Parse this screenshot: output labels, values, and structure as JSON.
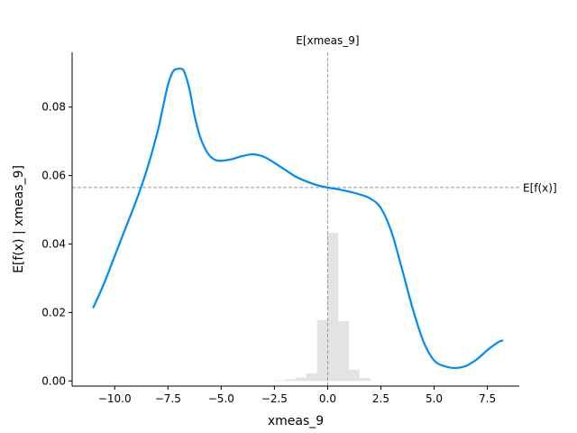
{
  "chart_data": {
    "type": "line",
    "xlabel": "xmeas_9",
    "ylabel": "E[f(x) | xmeas_9]",
    "xlim": [
      -12.0,
      9.0
    ],
    "ylim": [
      -0.0015,
      0.096
    ],
    "x_ticks": [
      -10.0,
      -7.5,
      -5.0,
      -2.5,
      0.0,
      2.5,
      5.0,
      7.5
    ],
    "x_tick_labels": [
      "−10.0",
      "−7.5",
      "−5.0",
      "−2.5",
      "0.0",
      "2.5",
      "5.0",
      "7.5"
    ],
    "y_ticks": [
      0.0,
      0.02,
      0.04,
      0.06,
      0.08
    ],
    "y_tick_labels": [
      "0.00",
      "0.02",
      "0.04",
      "0.06",
      "0.08"
    ],
    "grid": false,
    "line_color": "#008bfb",
    "ref_color": "#999999",
    "hist_color": "#cccccc",
    "series": [
      {
        "x": [
          -11.0,
          -10.5,
          -10.0,
          -9.5,
          -9.0,
          -8.5,
          -8.0,
          -7.75,
          -7.5,
          -7.25,
          -7.0,
          -6.9,
          -6.75,
          -6.5,
          -6.25,
          -6.0,
          -5.75,
          -5.5,
          -5.25,
          -5.0,
          -4.5,
          -4.0,
          -3.5,
          -3.0,
          -2.5,
          -2.0,
          -1.5,
          -1.0,
          -0.5,
          0.0,
          0.5,
          1.0,
          1.5,
          2.0,
          2.5,
          3.0,
          3.5,
          4.0,
          4.5,
          5.0,
          5.5,
          6.0,
          6.5,
          7.0,
          7.5,
          8.0,
          8.2
        ],
        "y": [
          0.0215,
          0.0285,
          0.0365,
          0.0445,
          0.0525,
          0.0615,
          0.0725,
          0.0795,
          0.0865,
          0.0905,
          0.0912,
          0.0912,
          0.0905,
          0.0855,
          0.0775,
          0.0715,
          0.0678,
          0.0655,
          0.0645,
          0.0643,
          0.0648,
          0.0657,
          0.0662,
          0.0655,
          0.0637,
          0.0617,
          0.0597,
          0.0583,
          0.0572,
          0.0565,
          0.056,
          0.0553,
          0.0545,
          0.0533,
          0.0505,
          0.0435,
          0.0325,
          0.021,
          0.0115,
          0.006,
          0.0043,
          0.0038,
          0.0044,
          0.0063,
          0.009,
          0.0113,
          0.0118
        ]
      }
    ],
    "histogram": {
      "bin_edges": [
        -2.5,
        -2.0,
        -1.5,
        -1.0,
        -0.5,
        0.0,
        0.5,
        1.0,
        1.5,
        2.0
      ],
      "values": [
        0.0002,
        0.0005,
        0.001,
        0.0022,
        0.0178,
        0.0432,
        0.0175,
        0.0033,
        0.0008
      ]
    },
    "ref_lines": {
      "vertical": {
        "x": 0.0,
        "label": "E[xmeas_9]"
      },
      "horizontal": {
        "y": 0.0565,
        "label": "E[f(x)]"
      }
    }
  }
}
